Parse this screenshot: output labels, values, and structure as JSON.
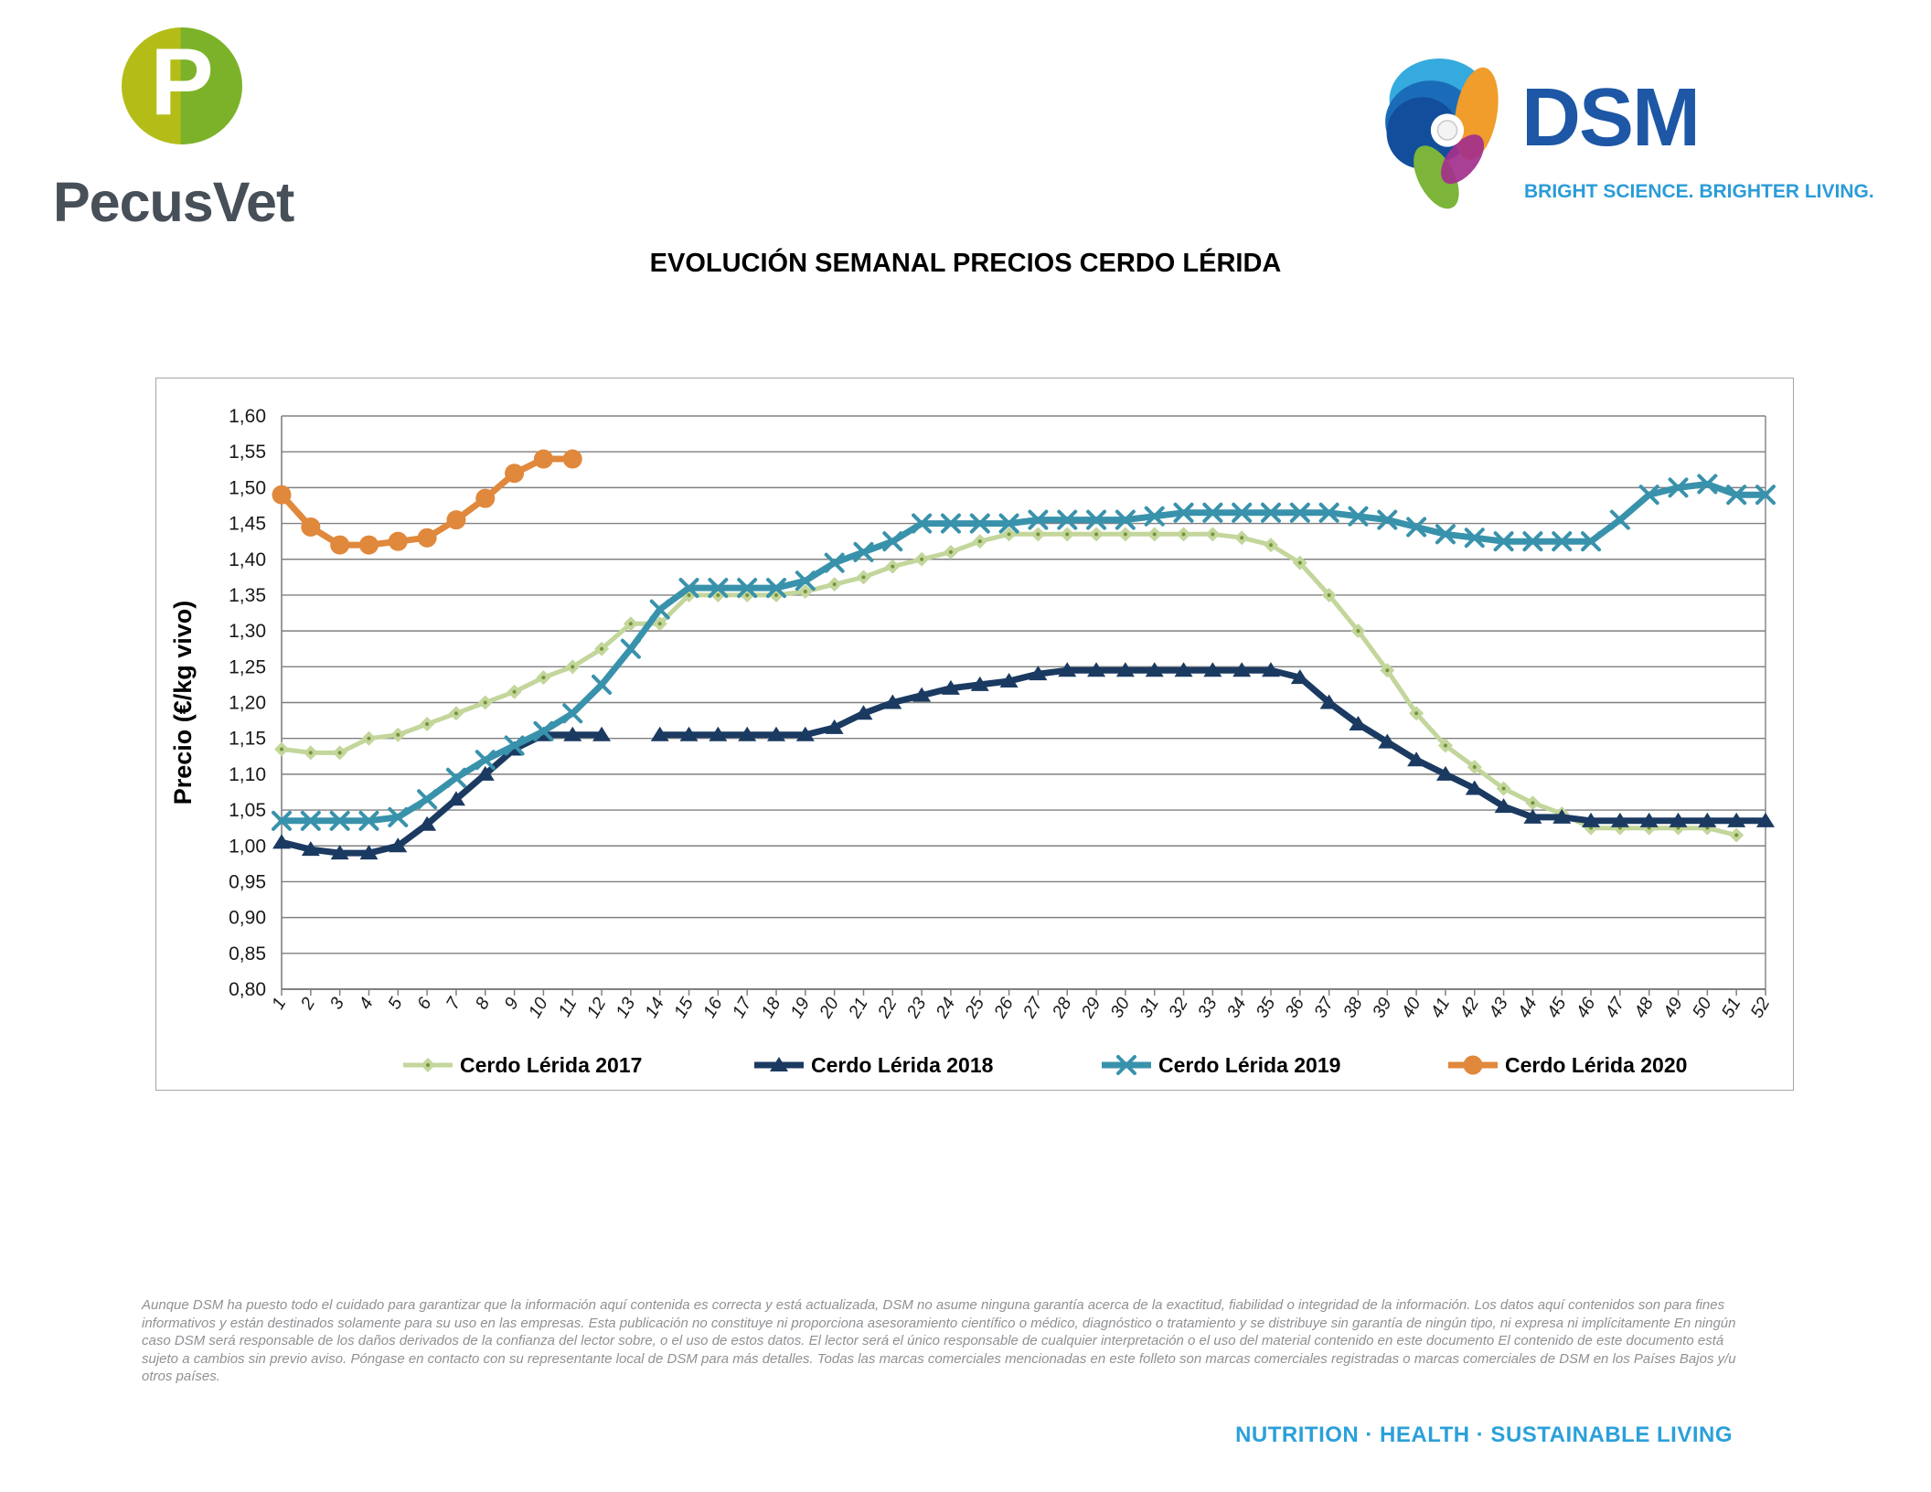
{
  "header": {
    "pecusvet": {
      "logo_letter": "P",
      "wordmark": "PecusVet"
    },
    "dsm": {
      "wordmark": "DSM",
      "tagline": "BRIGHT SCIENCE. BRIGHTER LIVING."
    }
  },
  "title": "EVOLUCIÓN SEMANAL PRECIOS CERDO LÉRIDA",
  "chart_data": {
    "type": "line",
    "title": "EVOLUCIÓN SEMANAL PRECIOS CERDO LÉRIDA",
    "xlabel": "",
    "ylabel": "Precio (€/kg vivo)",
    "ylim": [
      0.8,
      1.6
    ],
    "ytick_step": 0.05,
    "decimal_separator": ",",
    "grid": true,
    "legend_position": "bottom",
    "x": [
      1,
      2,
      3,
      4,
      5,
      6,
      7,
      8,
      9,
      10,
      11,
      12,
      13,
      14,
      15,
      16,
      17,
      18,
      19,
      20,
      21,
      22,
      23,
      24,
      25,
      26,
      27,
      28,
      29,
      30,
      31,
      32,
      33,
      34,
      35,
      36,
      37,
      38,
      39,
      40,
      41,
      42,
      43,
      44,
      45,
      46,
      47,
      48,
      49,
      50,
      51,
      52
    ],
    "colors": {
      "grid": "#808080",
      "axis_text": "#1a1a1a",
      "green_marker_dot": "#77933c"
    },
    "series": [
      {
        "name": "Cerdo Lérida 2017",
        "color": "#c3d69b",
        "marker": "diamond",
        "line_width": 5,
        "values": [
          1.135,
          1.13,
          1.13,
          1.15,
          1.155,
          1.17,
          1.185,
          1.2,
          1.215,
          1.235,
          1.25,
          1.275,
          1.31,
          1.31,
          1.35,
          1.35,
          1.35,
          1.35,
          1.355,
          1.365,
          1.375,
          1.39,
          1.4,
          1.41,
          1.425,
          1.435,
          1.435,
          1.435,
          1.435,
          1.435,
          1.435,
          1.435,
          1.435,
          1.43,
          1.42,
          1.395,
          1.35,
          1.3,
          1.245,
          1.185,
          1.14,
          1.11,
          1.08,
          1.06,
          1.045,
          1.025,
          1.025,
          1.025,
          1.025,
          1.025,
          1.015,
          null
        ]
      },
      {
        "name": "Cerdo Lérida 2018",
        "color": "#1b3a61",
        "marker": "triangle",
        "line_width": 7,
        "values": [
          1.005,
          0.995,
          0.99,
          0.99,
          1.0,
          1.03,
          1.065,
          1.1,
          1.135,
          1.155,
          1.155,
          1.155,
          null,
          1.155,
          1.155,
          1.155,
          1.155,
          1.155,
          1.155,
          1.165,
          1.185,
          1.2,
          1.21,
          1.22,
          1.225,
          1.23,
          1.24,
          1.245,
          1.245,
          1.245,
          1.245,
          1.245,
          1.245,
          1.245,
          1.245,
          1.235,
          1.2,
          1.17,
          1.145,
          1.12,
          1.1,
          1.08,
          1.055,
          1.04,
          1.04,
          1.035,
          1.035,
          1.035,
          1.035,
          1.035,
          1.035,
          1.035
        ]
      },
      {
        "name": "Cerdo Lérida 2019",
        "color": "#3992ab",
        "marker": "x",
        "line_width": 7,
        "values": [
          1.035,
          1.035,
          1.035,
          1.035,
          1.04,
          1.065,
          1.095,
          1.12,
          1.14,
          1.16,
          1.185,
          1.225,
          1.275,
          1.33,
          1.36,
          1.36,
          1.36,
          1.36,
          1.37,
          1.395,
          1.41,
          1.425,
          1.45,
          1.45,
          1.45,
          1.45,
          1.455,
          1.455,
          1.455,
          1.455,
          1.46,
          1.465,
          1.465,
          1.465,
          1.465,
          1.465,
          1.465,
          1.46,
          1.455,
          1.445,
          1.435,
          1.43,
          1.425,
          1.425,
          1.425,
          1.425,
          1.455,
          1.49,
          1.5,
          1.505,
          1.49,
          1.49
        ]
      },
      {
        "name": "Cerdo Lérida 2020",
        "color": "#e0883c",
        "marker": "circle",
        "line_width": 7,
        "values": [
          1.49,
          1.445,
          1.42,
          1.42,
          1.425,
          1.43,
          1.455,
          1.485,
          1.52,
          1.54,
          1.54,
          null,
          null,
          null,
          null,
          null,
          null,
          null,
          null,
          null,
          null,
          null,
          null,
          null,
          null,
          null,
          null,
          null,
          null,
          null,
          null,
          null,
          null,
          null,
          null,
          null,
          null,
          null,
          null,
          null,
          null,
          null,
          null,
          null,
          null,
          null,
          null,
          null,
          null,
          null,
          null,
          null
        ]
      }
    ]
  },
  "footer": {
    "disclaimer": "Aunque DSM ha puesto todo el cuidado para garantizar que la información aquí contenida es correcta y está actualizada, DSM no asume ninguna garantía acerca de la exactitud, fiabilidad o integridad de la información. Los datos aquí contenidos son para fines informativos y están destinados solamente para su uso en las empresas. Esta publicación no constituye ni proporciona asesoramiento científico o médico, diagnóstico o tratamiento y se distribuye sin garantía de ningún tipo, ni expresa ni implícitamente En ningún caso DSM será responsable de los daños derivados de la confianza del lector sobre, o el uso de estos datos. El lector será el único responsable de cualquier interpretación o el uso del material contenido en este documento El contenido de este documento está sujeto a cambios sin previo aviso. Póngase en contacto con su representante local de DSM para más detalles. Todas las marcas comerciales mencionadas en este folleto son marcas comerciales registradas o marcas comerciales de DSM en los Países Bajos y/u otros países.",
    "slogan": "NUTRITION · HEALTH · SUSTAINABLE LIVING"
  }
}
